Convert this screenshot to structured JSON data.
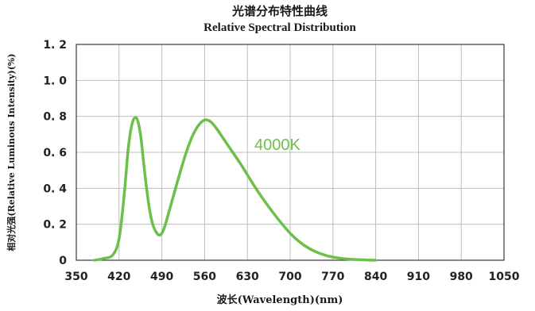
{
  "chart_data": {
    "type": "line",
    "title": "光谱分布特性曲线",
    "subtitle": "Relative Spectral Distribution",
    "xlabel": "波长(Wavelength)(nm)",
    "ylabel": "相对光强(Relative Luminous Intensity)(%)",
    "xlim": [
      350,
      1050
    ],
    "ylim": [
      0,
      1.2
    ],
    "x_ticks": [
      "350",
      "420",
      "490",
      "560",
      "630",
      "700",
      "770",
      "840",
      "910",
      "980",
      "1050"
    ],
    "y_ticks": [
      "0",
      "0. 2",
      "0. 4",
      "0. 6",
      "0. 8",
      "1. 0",
      "1. 2"
    ],
    "grid": true,
    "series": [
      {
        "name": "4000K",
        "color": "#6cc04a",
        "x": [
          380,
          395,
          410,
          420,
          428,
          435,
          440,
          445,
          450,
          455,
          460,
          465,
          470,
          475,
          480,
          485,
          490,
          495,
          500,
          510,
          520,
          530,
          540,
          550,
          560,
          570,
          580,
          590,
          600,
          620,
          640,
          660,
          680,
          700,
          720,
          740,
          760,
          780,
          800,
          820,
          840
        ],
        "y": [
          0.0,
          0.01,
          0.03,
          0.12,
          0.35,
          0.62,
          0.74,
          0.79,
          0.78,
          0.7,
          0.55,
          0.4,
          0.28,
          0.2,
          0.16,
          0.14,
          0.15,
          0.19,
          0.25,
          0.37,
          0.49,
          0.6,
          0.69,
          0.75,
          0.78,
          0.77,
          0.73,
          0.68,
          0.63,
          0.53,
          0.42,
          0.32,
          0.23,
          0.15,
          0.09,
          0.05,
          0.025,
          0.012,
          0.005,
          0.002,
          0.0
        ]
      }
    ]
  }
}
